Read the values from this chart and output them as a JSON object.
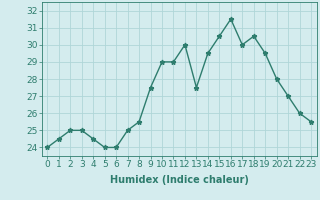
{
  "x": [
    0,
    1,
    2,
    3,
    4,
    5,
    6,
    7,
    8,
    9,
    10,
    11,
    12,
    13,
    14,
    15,
    16,
    17,
    18,
    19,
    20,
    21,
    22,
    23
  ],
  "y": [
    24.0,
    24.5,
    25.0,
    25.0,
    24.5,
    24.0,
    24.0,
    25.0,
    25.5,
    27.5,
    29.0,
    29.0,
    30.0,
    27.5,
    29.5,
    30.5,
    31.5,
    30.0,
    30.5,
    29.5,
    28.0,
    27.0,
    26.0,
    25.5
  ],
  "line_color": "#2e7d6e",
  "marker": "*",
  "marker_size": 3.5,
  "bg_color": "#d4ecee",
  "grid_color": "#afd6d8",
  "xlabel": "Humidex (Indice chaleur)",
  "ylabel_ticks": [
    24,
    25,
    26,
    27,
    28,
    29,
    30,
    31,
    32
  ],
  "ylim": [
    23.5,
    32.5
  ],
  "xlim": [
    -0.5,
    23.5
  ],
  "xlabel_fontsize": 7,
  "tick_fontsize": 6.5,
  "line_width": 1.0
}
